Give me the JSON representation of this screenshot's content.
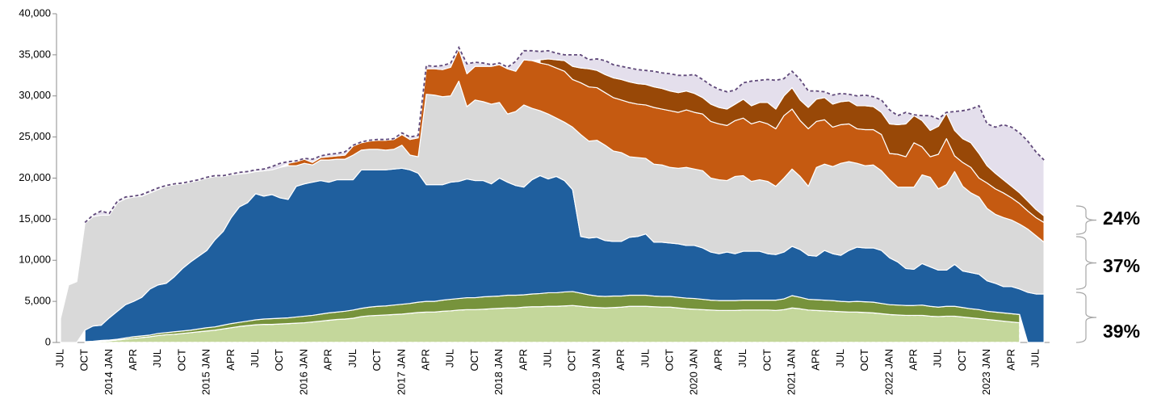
{
  "chart_data": {
    "type": "stacked_area",
    "categories": [
      "JUL",
      null,
      null,
      "OCT",
      null,
      null,
      "2014 JAN",
      null,
      null,
      "APR",
      null,
      null,
      "JUL",
      null,
      null,
      "OCT",
      null,
      null,
      "2015 JAN",
      null,
      null,
      "APR",
      null,
      null,
      "JUL",
      null,
      null,
      "OCT",
      null,
      null,
      "2016 JAN",
      null,
      null,
      "APR",
      null,
      null,
      "JUL",
      null,
      null,
      "OCT",
      null,
      null,
      "2017 JAN",
      null,
      null,
      "APR",
      null,
      null,
      "JUL",
      null,
      null,
      "OCT",
      null,
      null,
      "2018 JAN",
      null,
      null,
      "APR",
      null,
      null,
      "JUL",
      null,
      null,
      "OCT",
      null,
      null,
      "2019 JAN",
      null,
      null,
      "APR",
      null,
      null,
      "JUL",
      null,
      null,
      "OCT",
      null,
      null,
      "2020 JAN",
      null,
      null,
      "APR",
      null,
      null,
      "JUL",
      null,
      null,
      "OCT",
      null,
      null,
      "2021 JAN",
      null,
      null,
      "APR",
      null,
      null,
      "JUL",
      null,
      null,
      "OCT",
      null,
      null,
      "2022 JAN",
      null,
      null,
      "APR",
      null,
      null,
      "JUL",
      null,
      null,
      "OCT",
      null,
      null,
      "2023 JAN",
      null,
      null,
      "APR",
      null,
      null,
      "JUL",
      null
    ],
    "series": [
      {
        "color": "#c4d79b",
        "values": [
          null,
          null,
          null,
          50,
          100,
          150,
          200,
          300,
          400,
          500,
          600,
          700,
          850,
          950,
          1000,
          1100,
          1200,
          1300,
          1400,
          1500,
          1650,
          1800,
          1950,
          2050,
          2150,
          2200,
          2200,
          2250,
          2300,
          2350,
          2400,
          2500,
          2600,
          2700,
          2800,
          2850,
          2950,
          3150,
          3250,
          3300,
          3350,
          3400,
          3450,
          3550,
          3650,
          3700,
          3700,
          3800,
          3850,
          3950,
          4000,
          4000,
          4050,
          4100,
          4150,
          4200,
          4200,
          4300,
          4350,
          4350,
          4400,
          4400,
          4450,
          4500,
          4400,
          4300,
          4250,
          4200,
          4250,
          4300,
          4400,
          4400,
          4400,
          4350,
          4300,
          4300,
          4200,
          4100,
          4050,
          4000,
          3950,
          3900,
          3900,
          3900,
          3950,
          3950,
          3950,
          3950,
          3900,
          4000,
          4200,
          4100,
          3950,
          3900,
          3850,
          3800,
          3750,
          3700,
          3700,
          3650,
          3600,
          3500,
          3400,
          3350,
          3300,
          3300,
          3300,
          3200,
          3150,
          3200,
          3200,
          3100,
          3000,
          2900,
          2800,
          2700,
          2600,
          2500,
          2400,
          null,
          null,
          null
        ]
      },
      {
        "color": "#77933c",
        "values": [
          null,
          null,
          null,
          50,
          50,
          100,
          100,
          100,
          150,
          200,
          200,
          200,
          250,
          250,
          300,
          300,
          300,
          350,
          400,
          400,
          450,
          500,
          500,
          550,
          600,
          650,
          700,
          700,
          700,
          750,
          800,
          800,
          850,
          900,
          900,
          950,
          1000,
          1000,
          1050,
          1100,
          1100,
          1150,
          1200,
          1200,
          1250,
          1300,
          1300,
          1350,
          1400,
          1400,
          1450,
          1450,
          1500,
          1500,
          1500,
          1550,
          1550,
          1500,
          1550,
          1600,
          1650,
          1650,
          1700,
          1700,
          1600,
          1500,
          1400,
          1400,
          1400,
          1350,
          1350,
          1350,
          1350,
          1300,
          1300,
          1300,
          1300,
          1300,
          1300,
          1250,
          1200,
          1200,
          1200,
          1200,
          1200,
          1200,
          1200,
          1200,
          1250,
          1300,
          1500,
          1400,
          1300,
          1300,
          1300,
          1300,
          1250,
          1250,
          1300,
          1300,
          1300,
          1250,
          1200,
          1200,
          1200,
          1200,
          1250,
          1200,
          1150,
          1200,
          1200,
          1150,
          1100,
          1100,
          1000,
          1000,
          1000,
          1000,
          1000,
          null,
          null,
          null
        ]
      },
      {
        "color": "#1f5f9e",
        "values": [
          null,
          null,
          null,
          1400,
          1850,
          1850,
          2700,
          3400,
          4050,
          4300,
          4700,
          5600,
          5900,
          6000,
          6700,
          7600,
          8300,
          8850,
          9400,
          10600,
          11400,
          12900,
          14050,
          14400,
          15350,
          14950,
          15100,
          14650,
          14400,
          15900,
          16100,
          16200,
          16250,
          15900,
          16100,
          16000,
          15850,
          16850,
          16700,
          16600,
          16550,
          16550,
          16550,
          16250,
          15700,
          14200,
          14200,
          14050,
          14250,
          14250,
          14450,
          14250,
          14150,
          13700,
          14350,
          13750,
          13350,
          13100,
          13900,
          14350,
          13850,
          14150,
          13550,
          12400,
          6900,
          6900,
          7150,
          6800,
          6650,
          6650,
          7050,
          7150,
          7450,
          6550,
          6600,
          6500,
          6500,
          6400,
          6450,
          6250,
          5850,
          5700,
          5900,
          5700,
          5950,
          5950,
          5950,
          5650,
          5550,
          5700,
          6000,
          5800,
          5350,
          5300,
          6050,
          5700,
          5600,
          6250,
          6600,
          6550,
          6600,
          6450,
          5700,
          5250,
          4500,
          4400,
          5050,
          4800,
          4500,
          4400,
          5100,
          4450,
          4400,
          4300,
          3700,
          3500,
          3200,
          3300,
          3100,
          6100,
          5900,
          5900
        ]
      },
      {
        "color": "#d9d9d9",
        "values": [
          2900,
          7000,
          7400,
          13000,
          13300,
          13400,
          12500,
          13200,
          12900,
          12700,
          12300,
          11700,
          11600,
          11800,
          11200,
          10300,
          9700,
          9200,
          8800,
          7700,
          6700,
          5200,
          4000,
          3600,
          2700,
          3100,
          3000,
          3700,
          4100,
          2500,
          2500,
          2100,
          2500,
          2700,
          2500,
          2500,
          3000,
          2400,
          2500,
          2500,
          2400,
          2400,
          2800,
          1800,
          2000,
          11000,
          10900,
          10700,
          10500,
          12200,
          8800,
          9800,
          9600,
          9700,
          9200,
          8300,
          9000,
          10000,
          8700,
          7900,
          7900,
          7100,
          7100,
          7600,
          12400,
          11800,
          11800,
          11600,
          11000,
          10800,
          9800,
          9600,
          9200,
          9500,
          9400,
          9200,
          9200,
          9500,
          9300,
          9400,
          9000,
          9000,
          8700,
          9400,
          9200,
          8500,
          8700,
          8800,
          8300,
          9000,
          9400,
          8900,
          8400,
          10800,
          10500,
          10600,
          11200,
          10800,
          10200,
          10000,
          10100,
          9700,
          9500,
          9100,
          9900,
          10000,
          10800,
          10900,
          9900,
          10400,
          11300,
          10300,
          9700,
          9400,
          8800,
          8400,
          8400,
          8100,
          7900,
          7700,
          7100,
          6300
        ]
      },
      {
        "color": "#c55a11",
        "values": [
          null,
          null,
          null,
          null,
          null,
          null,
          null,
          null,
          null,
          null,
          null,
          null,
          null,
          null,
          null,
          null,
          null,
          null,
          null,
          null,
          null,
          null,
          null,
          null,
          null,
          null,
          null,
          null,
          300,
          500,
          500,
          300,
          300,
          400,
          400,
          500,
          1100,
          900,
          1000,
          1100,
          1200,
          1200,
          1300,
          1900,
          2300,
          3100,
          3200,
          3300,
          3500,
          3900,
          4000,
          4100,
          4300,
          4600,
          4600,
          5500,
          4900,
          5500,
          5800,
          5800,
          6000,
          6100,
          6200,
          5800,
          6300,
          6600,
          6400,
          6400,
          6500,
          6400,
          6600,
          6500,
          6500,
          6900,
          6800,
          6900,
          6800,
          7000,
          6900,
          6900,
          6900,
          6800,
          6700,
          6800,
          7000,
          7000,
          7100,
          7000,
          7000,
          7600,
          7300,
          6800,
          7000,
          5600,
          5400,
          4800,
          4700,
          4600,
          4200,
          4400,
          4300,
          4400,
          3200,
          4000,
          3700,
          5400,
          3400,
          2500,
          4200,
          5600,
          1900,
          2900,
          3100,
          2300,
          3100,
          3100,
          3000,
          2700,
          2500,
          2200,
          2200,
          2400
        ]
      },
      {
        "color": "#984807",
        "values": [
          null,
          null,
          null,
          null,
          null,
          null,
          null,
          null,
          null,
          null,
          null,
          null,
          null,
          null,
          null,
          null,
          null,
          null,
          null,
          null,
          null,
          null,
          null,
          null,
          null,
          null,
          null,
          null,
          null,
          null,
          null,
          null,
          null,
          null,
          null,
          null,
          null,
          null,
          null,
          null,
          null,
          null,
          null,
          null,
          null,
          null,
          null,
          null,
          null,
          null,
          null,
          null,
          null,
          null,
          null,
          null,
          null,
          null,
          null,
          400,
          700,
          1000,
          1300,
          1600,
          1800,
          2200,
          2100,
          2200,
          2400,
          2500,
          2500,
          2500,
          2500,
          2500,
          2500,
          2400,
          2400,
          2300,
          2300,
          2000,
          2100,
          2000,
          2000,
          2000,
          2300,
          2200,
          2300,
          2600,
          2400,
          2400,
          2600,
          2500,
          2600,
          2700,
          2700,
          2800,
          2800,
          2800,
          2800,
          2900,
          2800,
          2700,
          3600,
          3600,
          4000,
          3300,
          3200,
          3200,
          3400,
          3100,
          3100,
          2900,
          3000,
          3000,
          2100,
          1900,
          1600,
          1400,
          1300,
          1200,
          1000,
          800
        ]
      },
      {
        "color": "#e4dfec",
        "values": [
          null,
          null,
          null,
          100,
          200,
          500,
          200,
          200,
          200,
          100,
          200,
          200,
          200,
          100,
          100,
          100,
          100,
          100,
          100,
          100,
          100,
          100,
          200,
          200,
          200,
          200,
          400,
          500,
          200,
          100,
          100,
          400,
          200,
          300,
          300,
          400,
          100,
          100,
          100,
          100,
          100,
          100,
          200,
          300,
          300,
          400,
          300,
          500,
          500,
          200,
          1200,
          500,
          400,
          200,
          200,
          200,
          1200,
          1100,
          1200,
          1000,
          1000,
          800,
          700,
          1400,
          1600,
          1100,
          1400,
          1700,
          1600,
          1600,
          1700,
          1700,
          1700,
          1900,
          1900,
          2100,
          2100,
          1900,
          2300,
          2200,
          2300,
          2200,
          2100,
          1700,
          2000,
          3000,
          2700,
          2800,
          3500,
          2100,
          2000,
          2500,
          2000,
          1000,
          700,
          1100,
          1000,
          800,
          1200,
          1300,
          1200,
          1500,
          1700,
          1100,
          1400,
          100,
          600,
          1800,
          900,
          100,
          2300,
          3400,
          4100,
          5800,
          5100,
          5600,
          6700,
          7200,
          7300,
          7300,
          7000,
          6800
        ]
      }
    ],
    "ylim": [
      0,
      40000
    ],
    "yticks": [
      0,
      {
        "value": 5000,
        "label": "5,000"
      },
      {
        "value": 10000,
        "label": "10,000"
      },
      {
        "value": 15000,
        "label": "15,000"
      },
      {
        "value": 20000,
        "label": "20,000"
      },
      {
        "value": 25000,
        "label": "25,000"
      },
      {
        "value": 30000,
        "label": "30,000"
      },
      {
        "value": 35000,
        "label": "35,000"
      },
      {
        "value": 40000,
        "label": "40,000"
      }
    ],
    "grid": false,
    "annotations": [
      "24%",
      "37%",
      "39%"
    ]
  }
}
